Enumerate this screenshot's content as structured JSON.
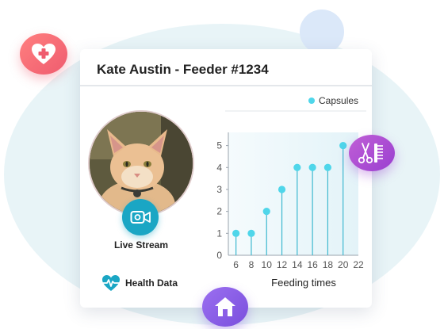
{
  "card": {
    "title": "Kate Austin - Feeder #1234"
  },
  "live_stream": {
    "label": "Live Stream",
    "icon": "video-camera-icon"
  },
  "health_data": {
    "label": "Health Data",
    "icon": "heartbeat-icon"
  },
  "badges": {
    "top_left": "heart-medical-icon",
    "right": "grooming-tools-icon",
    "bottom": "home-icon"
  },
  "colors": {
    "accent": "#1aa6c4",
    "point": "#4fd6ea",
    "heart_badge": "#ef5c6f",
    "groom_badge": "#9a3fd0",
    "home_badge": "#7a4fdd"
  },
  "chart_data": {
    "type": "scatter",
    "legend": "Capsules",
    "legend_position": "top-right",
    "xlabel": "Feeding times",
    "ylabel": "",
    "x_ticks": [
      6,
      8,
      10,
      12,
      14,
      16,
      18,
      20,
      22
    ],
    "y_ticks": [
      0,
      1,
      2,
      3,
      4,
      5
    ],
    "xlim": [
      5,
      22
    ],
    "ylim": [
      0,
      5.6
    ],
    "series": [
      {
        "name": "Capsules",
        "x": [
          6,
          8,
          10,
          12,
          14,
          16,
          18,
          20
        ],
        "y": [
          1,
          1,
          2,
          3,
          4,
          4,
          4,
          5
        ]
      }
    ]
  }
}
